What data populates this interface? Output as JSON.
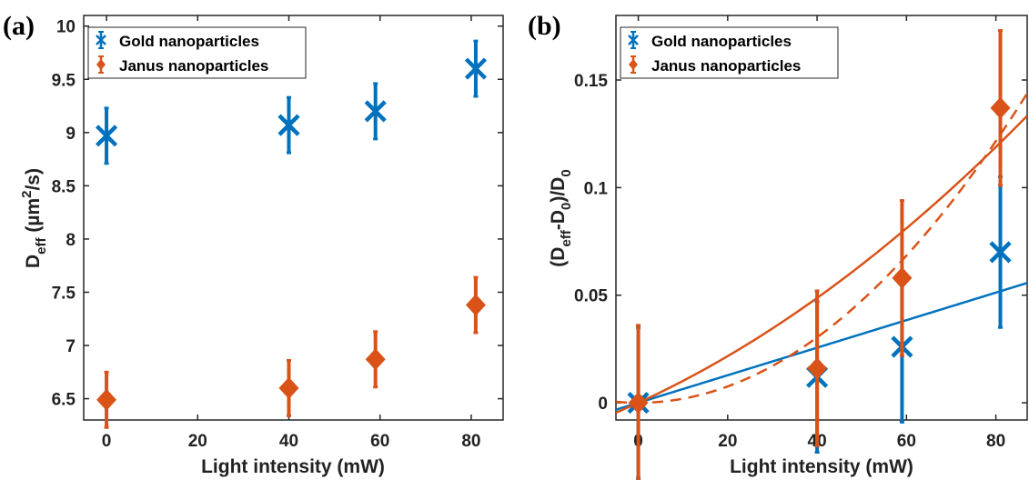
{
  "chart_data": [
    {
      "panel": "(a)",
      "type": "scatter",
      "xlabel": "Light intensity (mW)",
      "ylabel": {
        "base": "D",
        "sub": "eff",
        "unit_pre": " (µm",
        "sup": "2",
        "unit_post": "/s)"
      },
      "xlim": [
        -5,
        87
      ],
      "ylim": [
        6.3,
        10.1
      ],
      "xticks": [
        0,
        20,
        40,
        60,
        80
      ],
      "yticks": [
        6.5,
        7,
        7.5,
        8,
        8.5,
        9,
        9.5,
        10
      ],
      "ytick_labels": [
        "6.5",
        "7",
        "7.5",
        "8",
        "8.5",
        "9",
        "9.5",
        "10"
      ],
      "legend_position": "top-left",
      "series": [
        {
          "name": "Gold nanoparticles",
          "marker": "x",
          "color": "#0072BD",
          "x": [
            0,
            40,
            59,
            81
          ],
          "y": [
            8.97,
            9.07,
            9.2,
            9.6
          ],
          "err": [
            0.26,
            0.26,
            0.26,
            0.26
          ]
        },
        {
          "name": "Janus nanoparticles",
          "marker": "diamond",
          "color": "#D95319",
          "x": [
            0,
            40,
            59,
            81
          ],
          "y": [
            6.49,
            6.6,
            6.87,
            7.38
          ],
          "err": [
            0.26,
            0.26,
            0.26,
            0.26
          ]
        }
      ],
      "fits": []
    },
    {
      "panel": "(b)",
      "type": "scatter",
      "xlabel": "Light intensity (mW)",
      "ylabel": {
        "p1": "(D",
        "sub1": "eff",
        "p2": "-D",
        "sub2": "0",
        "p3": ")/D",
        "sub3": "0"
      },
      "xlim": [
        -5,
        87
      ],
      "ylim": [
        -0.008,
        0.18
      ],
      "xticks": [
        0,
        20,
        40,
        60,
        80
      ],
      "yticks": [
        0,
        0.05,
        0.1,
        0.15
      ],
      "ytick_labels": [
        "0",
        "0.05",
        "0.1",
        "0.15"
      ],
      "legend_position": "top-left",
      "series": [
        {
          "name": "Gold nanoparticles",
          "marker": "x",
          "color": "#0072BD",
          "x": [
            0,
            40,
            59,
            81
          ],
          "y": [
            0,
            0.012,
            0.026,
            0.07
          ],
          "err": [
            0.035,
            0.035,
            0.035,
            0.035
          ]
        },
        {
          "name": "Janus nanoparticles",
          "marker": "diamond",
          "color": "#D95319",
          "x": [
            0,
            40,
            59,
            81
          ],
          "y": [
            0,
            0.016,
            0.058,
            0.137
          ],
          "err": [
            0.036,
            0.036,
            0.036,
            0.036
          ]
        }
      ],
      "fits": [
        {
          "color": "#0072BD",
          "style": "solid",
          "a": 0.00064,
          "b": 0
        },
        {
          "color": "#D95319",
          "style": "solid",
          "a": 0.00095,
          "b": 6.7e-06
        },
        {
          "color": "#D95319",
          "style": "dashed",
          "a": 0,
          "b": 1.9e-05
        }
      ]
    }
  ]
}
